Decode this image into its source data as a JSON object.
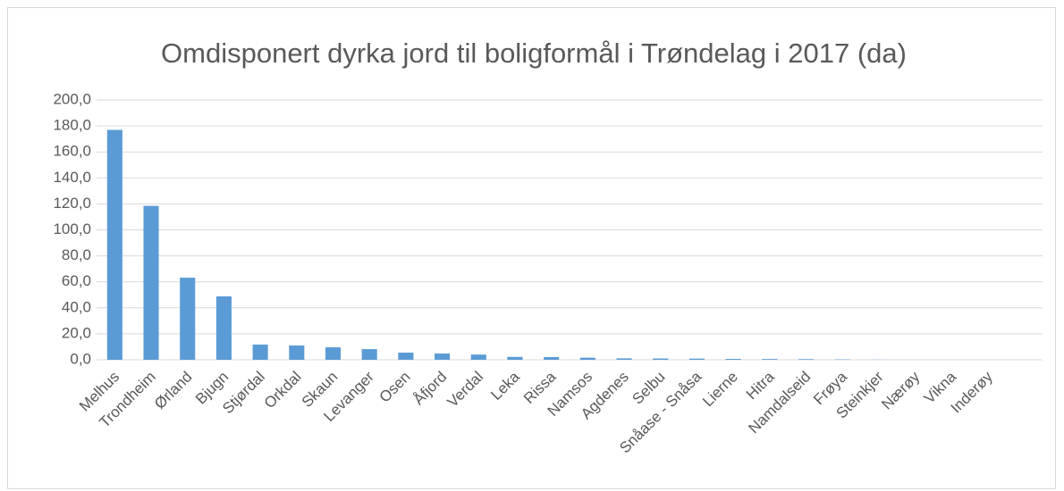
{
  "chart_data": {
    "type": "bar",
    "title": "Omdisponert dyrka jord til boligformål i Trøndelag i 2017 (da)",
    "categories": [
      "Melhus",
      "Trondheim",
      "Ørland",
      "Bjugn",
      "Stjørdal",
      "Orkdal",
      "Skaun",
      "Levanger",
      "Osen",
      "Åfjord",
      "Verdal",
      "Leka",
      "Rissa",
      "Namsos",
      "Agdenes",
      "Selbu",
      "Snåase - Snåsa",
      "Lierne",
      "Hitra",
      "Namdalseid",
      "Frøya",
      "Steinkjer",
      "Nærøy",
      "Vikna",
      "Inderøy"
    ],
    "values": [
      177,
      118.5,
      63.2,
      48.8,
      11.7,
      11,
      9.6,
      8.2,
      5.5,
      4.8,
      4,
      2.2,
      2.1,
      1.6,
      1.1,
      1,
      0.9,
      0.7,
      0.6,
      0.5,
      0.3,
      0.1,
      0,
      0,
      0
    ],
    "color": "#5b9bd5",
    "ylim": [
      0,
      200
    ],
    "yticks": [
      {
        "value": 0,
        "label": "0,0"
      },
      {
        "value": 20,
        "label": "20,0"
      },
      {
        "value": 40,
        "label": "40,0"
      },
      {
        "value": 60,
        "label": "60,0"
      },
      {
        "value": 80,
        "label": "80,0"
      },
      {
        "value": 100,
        "label": "100,0"
      },
      {
        "value": 120,
        "label": "120,0"
      },
      {
        "value": 140,
        "label": "140,0"
      },
      {
        "value": 160,
        "label": "160,0"
      },
      {
        "value": 180,
        "label": "180,0"
      },
      {
        "value": 200,
        "label": "200,0"
      }
    ],
    "grid": true
  }
}
